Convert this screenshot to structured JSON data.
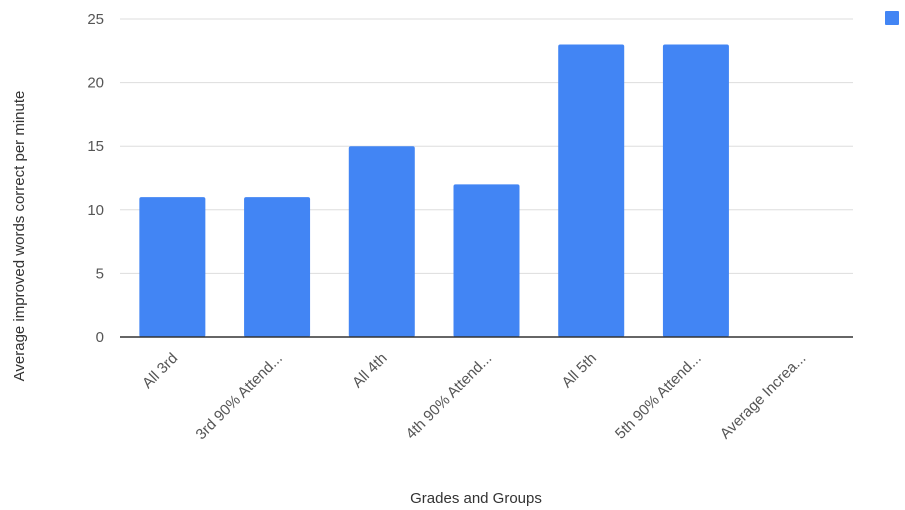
{
  "chart_data": {
    "type": "bar",
    "categories": [
      "All 3rd",
      "3rd 90% Attend...",
      "All 4th",
      "4th 90% Attend...",
      "All 5th",
      "5th 90% Attend...",
      "Average Increa..."
    ],
    "values": [
      11,
      11,
      15,
      12,
      23,
      23,
      0
    ],
    "title": "",
    "xlabel": "Grades and Groups",
    "ylabel": "Average improved words correct per minute",
    "ylim": [
      0,
      25
    ],
    "yticks": [
      0,
      5,
      10,
      15,
      20,
      25
    ],
    "grid": true,
    "legend_placement": "top-right",
    "bar_color": "#4285f4",
    "gridline_color": "#dddddd",
    "baseline_color": "#333333"
  }
}
